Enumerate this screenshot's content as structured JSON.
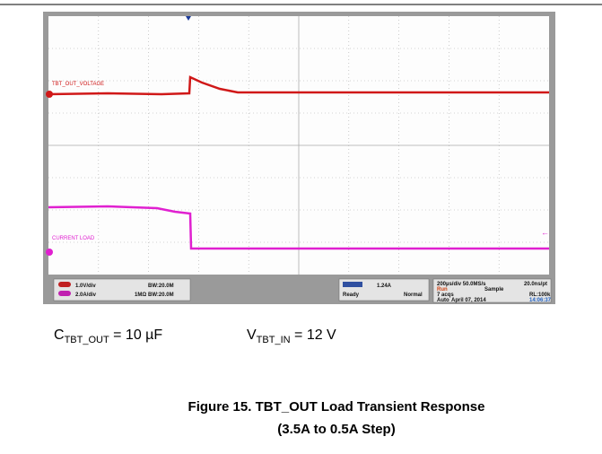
{
  "scope": {
    "traces": {
      "ch1_label": "TBT_OUT_VOLTAGE",
      "ch2_label": "CURRENT LOAD"
    },
    "status": {
      "ch1": {
        "scale": "1.0V/div",
        "bw": "BW:20.0M"
      },
      "ch2": {
        "scale": "2.0A/div",
        "impedance": "1MΩ",
        "bw": "BW:20.0M"
      },
      "trigger": {
        "level": "1.24A",
        "state": "Ready",
        "mode": "Normal"
      },
      "acquisition": {
        "timebase": "200µs/div  50.0MS/s",
        "resolution": "20.0ns/pt",
        "run": "Run",
        "sample": "Sample",
        "acqs": "7 acqs",
        "record": "RL:100k",
        "auto": "Auto",
        "date": "April 07, 2014",
        "time": "14:06:37"
      }
    }
  },
  "conditions": [
    {
      "symbol": "C",
      "subscript": "TBT_OUT",
      "rest": " = 10 µF"
    },
    {
      "symbol": "V",
      "subscript": "TBT_IN",
      "rest": " = 12 V"
    }
  ],
  "caption": {
    "title": "Figure 15. TBT_OUT Load Transient Response",
    "subtitle": "(3.5A to 0.5A Step)"
  }
}
